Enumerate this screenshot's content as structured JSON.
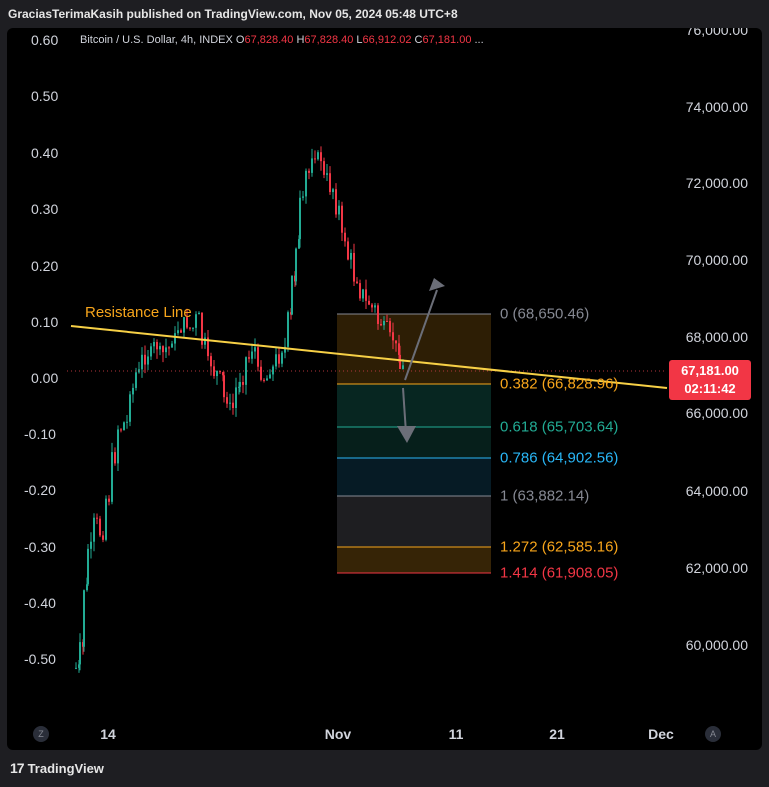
{
  "header": {
    "text": "GraciasTerimaKasih published on TradingView.com, Nov 05, 2024 05:48 UTC+8"
  },
  "legend": {
    "symbol": "Bitcoin / U.S. Dollar, 4h, INDEX",
    "o_label": "O",
    "o_value": "67,828.40",
    "h_label": "H",
    "h_value": "67,828.40",
    "l_label": "L",
    "l_value": "66,912.02",
    "c_label": "C",
    "c_value": "67,181.00",
    "ellipsis": "..."
  },
  "left_axis": [
    "0.60",
    "0.50",
    "0.40",
    "0.30",
    "0.20",
    "0.10",
    "0.00",
    "-0.10",
    "-0.20",
    "-0.30",
    "-0.40",
    "-0.50"
  ],
  "right_axis": [
    "76,000.00",
    "74,000.00",
    "72,000.00",
    "70,000.00",
    "68,000.00",
    "66,000.00",
    "64,000.00",
    "62,000.00",
    "60,000.00"
  ],
  "x_axis": [
    "14",
    "Nov",
    "11",
    "21",
    "Dec"
  ],
  "price_badge": {
    "price": "67,181.00",
    "countdown": "02:11:42"
  },
  "resistance_label": "Resistance Line",
  "fib_levels": [
    {
      "text": "0 (68,650.46)",
      "color": "#868993"
    },
    {
      "text": "0.382 (66,828.96)",
      "color": "#f7a51b"
    },
    {
      "text": "0.618 (65,703.64)",
      "color": "#22ab94"
    },
    {
      "text": "0.786 (64,902.56)",
      "color": "#29b6f6"
    },
    {
      "text": "1 (63,882.14)",
      "color": "#868993"
    },
    {
      "text": "1.272 (62,585.16)",
      "color": "#f7a51b"
    },
    {
      "text": "1.414 (61,908.05)",
      "color": "#f23645"
    }
  ],
  "corner_left": "Z",
  "corner_right": "A",
  "footer": {
    "brand": "TradingView",
    "logo": "17"
  },
  "colors": {
    "up": "#22ab94",
    "down": "#f23645",
    "resistance": "#f7d046"
  }
}
